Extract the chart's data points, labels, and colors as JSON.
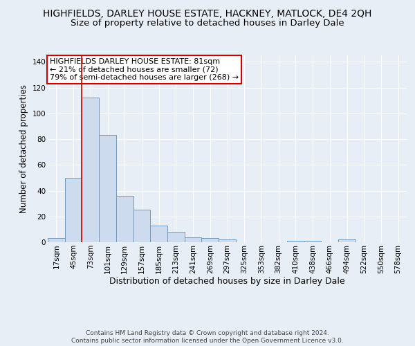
{
  "title": "HIGHFIELDS, DARLEY HOUSE ESTATE, HACKNEY, MATLOCK, DE4 2QH",
  "subtitle": "Size of property relative to detached houses in Darley Dale",
  "xlabel": "Distribution of detached houses by size in Darley Dale",
  "ylabel": "Number of detached properties",
  "bar_values": [
    3,
    50,
    112,
    83,
    36,
    25,
    13,
    8,
    4,
    3,
    2,
    0,
    0,
    0,
    1,
    1,
    0,
    2,
    0,
    0,
    0
  ],
  "x_labels": [
    "17sqm",
    "45sqm",
    "73sqm",
    "101sqm",
    "129sqm",
    "157sqm",
    "185sqm",
    "213sqm",
    "241sqm",
    "269sqm",
    "297sqm",
    "325sqm",
    "353sqm",
    "382sqm",
    "410sqm",
    "438sqm",
    "466sqm",
    "494sqm",
    "522sqm",
    "550sqm",
    "578sqm"
  ],
  "bar_color": "#ccdcee",
  "bar_edge_color": "#7099be",
  "red_line_index": 2,
  "ylim": [
    0,
    145
  ],
  "yticks": [
    0,
    20,
    40,
    60,
    80,
    100,
    120,
    140
  ],
  "annotation_title": "HIGHFIELDS DARLEY HOUSE ESTATE: 81sqm",
  "annotation_line1": "← 21% of detached houses are smaller (72)",
  "annotation_line2": "79% of semi-detached houses are larger (268) →",
  "annotation_box_color": "#ffffff",
  "annotation_box_edge": "#cc0000",
  "footer1": "Contains HM Land Registry data © Crown copyright and database right 2024.",
  "footer2": "Contains public sector information licensed under the Open Government Licence v3.0.",
  "background_color": "#e8eef6",
  "plot_background": "#e8eef6",
  "grid_color": "#ffffff",
  "title_fontsize": 10,
  "subtitle_fontsize": 9.5,
  "xlabel_fontsize": 9,
  "ylabel_fontsize": 8.5,
  "tick_fontsize": 7.5,
  "footer_fontsize": 6.5,
  "ann_fontsize": 8
}
